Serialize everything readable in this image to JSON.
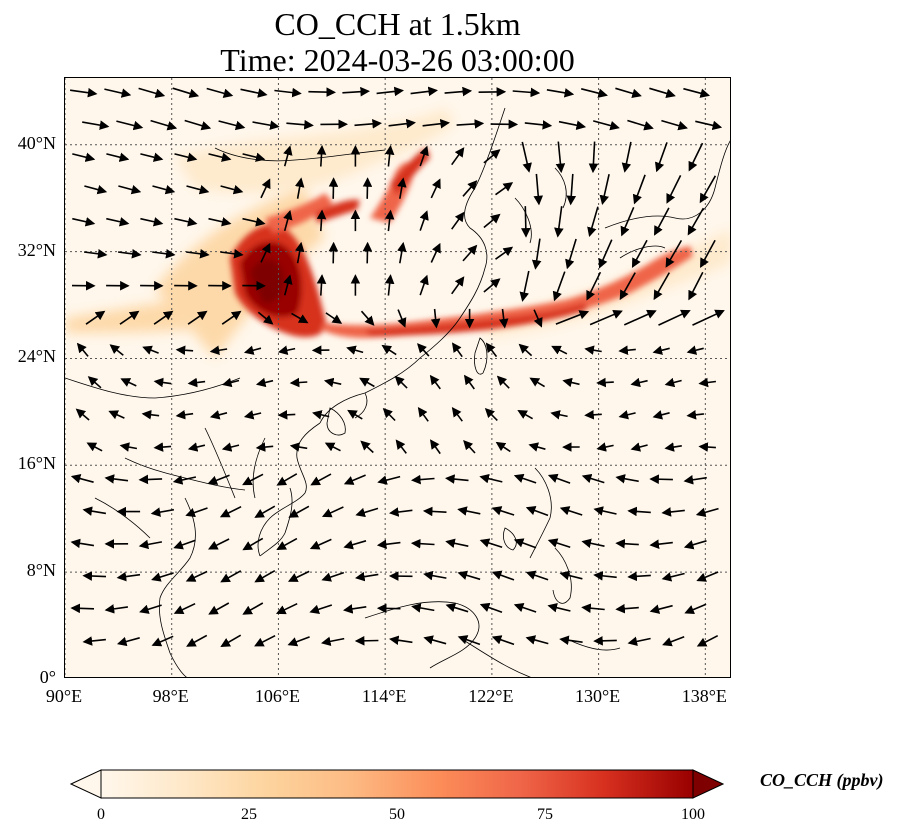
{
  "title": {
    "line1": "CO_CCH at 1.5km",
    "line2": "Time: 2024-03-26 03:00:00"
  },
  "map": {
    "extent": {
      "lon_min": 90,
      "lon_max": 140,
      "lat_min": 0,
      "lat_max": 45
    },
    "lat_ticks": [
      {
        "value": 0,
        "label": "0°"
      },
      {
        "value": 8,
        "label": "8°N"
      },
      {
        "value": 16,
        "label": "16°N"
      },
      {
        "value": 24,
        "label": "24°N"
      },
      {
        "value": 32,
        "label": "32°N"
      },
      {
        "value": 40,
        "label": "40°N"
      }
    ],
    "lon_ticks": [
      {
        "value": 90,
        "label": "90°E"
      },
      {
        "value": 98,
        "label": "98°E"
      },
      {
        "value": 106,
        "label": "106°E"
      },
      {
        "value": 114,
        "label": "114°E"
      },
      {
        "value": 122,
        "label": "122°E"
      },
      {
        "value": 130,
        "label": "130°E"
      },
      {
        "value": 138,
        "label": "138°E"
      }
    ],
    "gridlines": true,
    "colormap": "OrRd",
    "colors": {
      "background": "#fff7ec",
      "low": "#fdd49e",
      "mid": "#ef6548",
      "high": "#7f0000",
      "coast": "#000000",
      "arrow": "#000000"
    }
  },
  "colorbar": {
    "title": "CO_CCH (ppbv)",
    "min": 0,
    "max": 100,
    "ticks": [
      "0",
      "25",
      "50",
      "75",
      "100"
    ],
    "extend": "both"
  }
}
